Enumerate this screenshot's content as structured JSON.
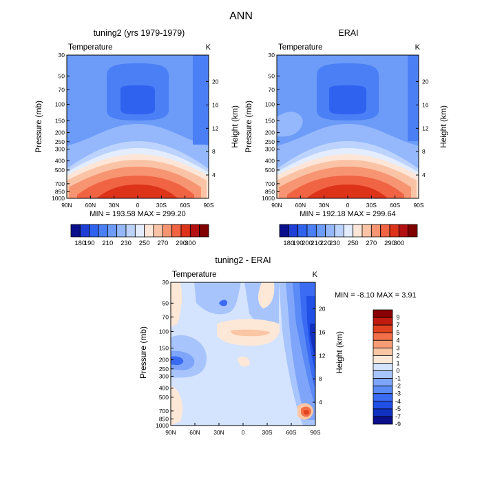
{
  "figure_title": "ANN",
  "chart_data": [
    {
      "type": "heatmap",
      "id": "model",
      "title": "tuning2 (yrs 1979-1979)",
      "variable": "Temperature",
      "units": "K",
      "ylabel": "Pressure (mb)",
      "ylabel_right": "Height (km)",
      "x_ticks": [
        "90N",
        "60N",
        "30N",
        "0",
        "30S",
        "60S",
        "90S"
      ],
      "y_ticks": [
        "30",
        "50",
        "70",
        "100",
        "150",
        "200",
        "250",
        "300",
        "400",
        "500",
        "700",
        "850",
        "1000"
      ],
      "right_ticks": [
        "20",
        "16",
        "12",
        "8",
        "4"
      ],
      "min": "193.58",
      "max": "299.20",
      "min_max_text": "MIN = 193.58   MAX = 299.20",
      "levels": [
        "180",
        "190",
        "200",
        "210",
        "220",
        "230",
        "240",
        "250",
        "260",
        "270",
        "280",
        "290",
        "300"
      ],
      "colorbar_labels": [
        "180",
        "190",
        "210",
        "230",
        "250",
        "270",
        "290",
        "300"
      ]
    },
    {
      "type": "heatmap",
      "id": "obs",
      "title": "ERAI",
      "variable": "Temperature",
      "units": "K",
      "ylabel": "Pressure (mb)",
      "ylabel_right": "Height (km)",
      "x_ticks": [
        "90N",
        "60N",
        "30N",
        "0",
        "30S",
        "60S",
        "90S"
      ],
      "y_ticks": [
        "30",
        "50",
        "70",
        "100",
        "150",
        "200",
        "250",
        "300",
        "400",
        "500",
        "700",
        "850",
        "1000"
      ],
      "right_ticks": [
        "20",
        "16",
        "12",
        "8",
        "4"
      ],
      "min": "192.18",
      "max": "299.64",
      "min_max_text": "MIN = 192.18   MAX = 299.64",
      "levels": [
        "180",
        "190",
        "200",
        "210",
        "220",
        "230",
        "240",
        "250",
        "260",
        "270",
        "280",
        "290",
        "300"
      ],
      "colorbar_labels": [
        "180",
        "190",
        "200",
        "210",
        "220",
        "230",
        "250",
        "270",
        "290",
        "300"
      ]
    },
    {
      "type": "heatmap",
      "id": "diff",
      "title": "tuning2 - ERAI",
      "variable": "Temperature",
      "units": "K",
      "ylabel": "Pressure (mb)",
      "ylabel_right": "Height (km)",
      "x_ticks": [
        "90N",
        "60N",
        "30N",
        "0",
        "30S",
        "60S",
        "90S"
      ],
      "y_ticks": [
        "30",
        "50",
        "70",
        "100",
        "150",
        "200",
        "250",
        "300",
        "400",
        "500",
        "700",
        "850",
        "1000"
      ],
      "right_ticks": [
        "20",
        "16",
        "12",
        "8",
        "4"
      ],
      "min": "-8.10",
      "max": "3.91",
      "min_max_text": "MIN =  -8.10   MAX =   3.91",
      "levels": [
        "-9",
        "-7",
        "-5",
        "-4",
        "-3",
        "-2",
        "-1",
        "0",
        "1",
        "2",
        "3",
        "4",
        "5",
        "7",
        "9"
      ],
      "colorbar_labels": [
        "9",
        "7",
        "5",
        "4",
        "3",
        "2",
        "1",
        "0",
        "-1",
        "-2",
        "-3",
        "-4",
        "-5",
        "-7",
        "-9"
      ]
    }
  ],
  "colors": {
    "temp_scale": [
      "#0a0f8c",
      "#1e3ed6",
      "#2f62ee",
      "#4a7ff5",
      "#6c9bf8",
      "#94b8fb",
      "#bcd3fd",
      "#e3edfe",
      "#fde6d8",
      "#fbc3a5",
      "#f79472",
      "#f06343",
      "#dc3319",
      "#b31111",
      "#800000"
    ],
    "diff_scale": [
      "#0a0f8c",
      "#1030c0",
      "#2050e6",
      "#3a6bf2",
      "#5a8af6",
      "#7ea5fa",
      "#a8c4fc",
      "#d4e3fe",
      "#fde8d8",
      "#fbc6a4",
      "#f89c74",
      "#f26f48",
      "#e2411f",
      "#c01b10",
      "#8a0000"
    ],
    "gray_outline": "#000000"
  }
}
